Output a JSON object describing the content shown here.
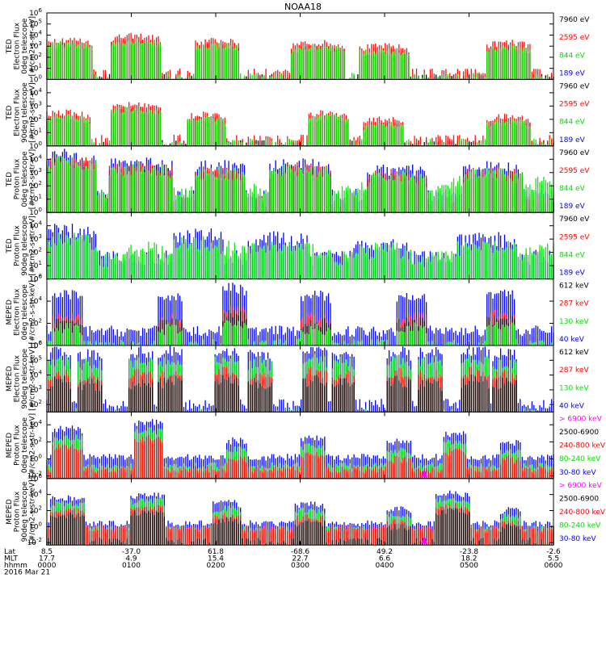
{
  "title": "NOAA18",
  "colors": {
    "blue": "#0000ff",
    "red": "#ff0000",
    "green": "#00e000",
    "black": "#000000",
    "magenta": "#ff00ff"
  },
  "footer": {
    "row_labels": [
      "Lat",
      "MLT",
      "hhmm",
      "2016 Mar 21"
    ],
    "ticks": [
      {
        "lat": "8.5",
        "mlt": "17.7",
        "hhmm": "0000"
      },
      {
        "lat": "-37.0",
        "mlt": "4.9",
        "hhmm": "0100"
      },
      {
        "lat": "61.8",
        "mlt": "15.4",
        "hhmm": "0200"
      },
      {
        "lat": "-68.6",
        "mlt": "22.7",
        "hhmm": "0300"
      },
      {
        "lat": "49.2",
        "mlt": "6.6",
        "hhmm": "0400"
      },
      {
        "lat": "-23.8",
        "mlt": "18.2",
        "hhmm": "0500"
      },
      {
        "lat": "-2.6",
        "mlt": "5.5",
        "hhmm": "0600"
      }
    ]
  },
  "chart_data": [
    {
      "type": "line",
      "ylabel": [
        "TED",
        "Electron Flux",
        "0deg telescope",
        "[#/cm2-s-str-eV]"
      ],
      "yscale": "log",
      "ylim_exp": [
        0,
        6
      ],
      "tick_exps": [
        0,
        1,
        2,
        3,
        4,
        5,
        6
      ],
      "legend": [
        {
          "label": "7960 eV",
          "color": "#000000"
        },
        {
          "label": "2595 eV",
          "color": "#ff0000"
        },
        {
          "label": "844 eV",
          "color": "#00e000"
        },
        {
          "label": "189 eV",
          "color": "#0000ff"
        }
      ],
      "bursts": [
        {
          "x": 0.035,
          "w": 0.11,
          "peak": 3.6
        },
        {
          "x": 0.175,
          "w": 0.1,
          "peak": 3.9
        },
        {
          "x": 0.335,
          "w": 0.09,
          "peak": 3.5
        },
        {
          "x": 0.535,
          "w": 0.11,
          "peak": 3.3
        },
        {
          "x": 0.665,
          "w": 0.1,
          "peak": 3.0
        },
        {
          "x": 0.91,
          "w": 0.09,
          "peak": 3.3
        }
      ],
      "base": 0.7,
      "noise": 0.3,
      "series": [
        {
          "color": "#000000",
          "offset": -0.5,
          "gapfill": true
        },
        {
          "color": "#ff0000",
          "offset": 0.0,
          "gapfill": false
        },
        {
          "color": "#00e000",
          "offset": -0.4,
          "gapfill": false
        }
      ]
    },
    {
      "type": "line",
      "ylabel": [
        "TED",
        "Electron Flux",
        "90deg telescope",
        "[#/cm2-s-str-eV]"
      ],
      "yscale": "log",
      "ylim_exp": [
        0,
        5
      ],
      "tick_exps": [
        0,
        1,
        2,
        3,
        4
      ],
      "legend": [
        {
          "label": "7960 eV",
          "color": "#000000"
        },
        {
          "label": "2595 eV",
          "color": "#ff0000"
        },
        {
          "label": "844 eV",
          "color": "#00e000"
        },
        {
          "label": "189 eV",
          "color": "#0000ff"
        }
      ],
      "bursts": [
        {
          "x": 0.035,
          "w": 0.1,
          "peak": 2.5
        },
        {
          "x": 0.175,
          "w": 0.1,
          "peak": 3.1
        },
        {
          "x": 0.315,
          "w": 0.08,
          "peak": 2.4
        },
        {
          "x": 0.555,
          "w": 0.08,
          "peak": 2.5
        },
        {
          "x": 0.665,
          "w": 0.08,
          "peak": 2.0
        },
        {
          "x": 0.91,
          "w": 0.09,
          "peak": 2.2
        }
      ],
      "base": 0.6,
      "noise": 0.25,
      "series": [
        {
          "color": "#000000",
          "offset": -0.4,
          "gapfill": true
        },
        {
          "color": "#ff0000",
          "offset": 0.0,
          "gapfill": false
        },
        {
          "color": "#00e000",
          "offset": -0.3,
          "gapfill": false
        }
      ]
    },
    {
      "type": "line",
      "ylabel": [
        "TED",
        "Proton Flux",
        "0deg telescope",
        "[#/cm2-s-str-eV]"
      ],
      "yscale": "log",
      "ylim_exp": [
        0,
        5
      ],
      "tick_exps": [
        0,
        1,
        2,
        3,
        4
      ],
      "legend": [
        {
          "label": "7960 eV",
          "color": "#000000"
        },
        {
          "label": "2595 eV",
          "color": "#ff0000"
        },
        {
          "label": "844 eV",
          "color": "#00e000"
        },
        {
          "label": "189 eV",
          "color": "#0000ff"
        }
      ],
      "bursts": [
        {
          "x": 0.035,
          "w": 0.13,
          "peak": 4.3
        },
        {
          "x": 0.185,
          "w": 0.13,
          "peak": 3.8
        },
        {
          "x": 0.34,
          "w": 0.1,
          "peak": 3.5
        },
        {
          "x": 0.5,
          "w": 0.12,
          "peak": 3.7
        },
        {
          "x": 0.69,
          "w": 0.12,
          "peak": 3.2
        },
        {
          "x": 0.88,
          "w": 0.12,
          "peak": 3.4
        }
      ],
      "base": 1.3,
      "noise": 0.5,
      "series": [
        {
          "color": "#0000ff",
          "offset": 0.0,
          "gapfill": true
        },
        {
          "color": "#000000",
          "offset": -0.6,
          "gapfill": false
        },
        {
          "color": "#ff0000",
          "offset": -0.4,
          "gapfill": false
        },
        {
          "color": "#00e000",
          "offset": -0.5,
          "gapfill": true,
          "hump": 2.3
        }
      ]
    },
    {
      "type": "line",
      "ylabel": [
        "TED",
        "Proton Flux",
        "90deg telescope",
        "[#/cm2-s-str-eV]"
      ],
      "yscale": "log",
      "ylim_exp": [
        0,
        5
      ],
      "tick_exps": [
        0,
        1,
        2,
        3,
        4
      ],
      "legend": [
        {
          "label": "7960 eV",
          "color": "#000000"
        },
        {
          "label": "2595 eV",
          "color": "#ff0000"
        },
        {
          "label": "844 eV",
          "color": "#00e000"
        },
        {
          "label": "189 eV",
          "color": "#0000ff"
        }
      ],
      "bursts": [
        {
          "x": 0.035,
          "w": 0.13,
          "peak": 3.6
        },
        {
          "x": 0.3,
          "w": 0.1,
          "peak": 3.3
        },
        {
          "x": 0.455,
          "w": 0.12,
          "peak": 3.0
        },
        {
          "x": 0.66,
          "w": 0.12,
          "peak": 2.7
        },
        {
          "x": 0.87,
          "w": 0.12,
          "peak": 3.0
        }
      ],
      "base": 1.6,
      "noise": 0.6,
      "series": [
        {
          "color": "#0000ff",
          "offset": 0.0,
          "gapfill": true
        },
        {
          "color": "#00e000",
          "offset": -0.6,
          "gapfill": true,
          "hump": 2.3
        }
      ]
    },
    {
      "type": "line",
      "ylabel": [
        "MEPED",
        "Electron Flux",
        "0deg telescope",
        "[#/cm2-s-str-keV]"
      ],
      "yscale": "log",
      "ylim_exp": [
        0,
        6
      ],
      "tick_exps": [
        0,
        2,
        4,
        6
      ],
      "legend": [
        {
          "label": "612 keV",
          "color": "#000000"
        },
        {
          "label": "287 keV",
          "color": "#ff0000"
        },
        {
          "label": "130 keV",
          "color": "#00e000"
        },
        {
          "label": "40 keV",
          "color": "#0000ff"
        }
      ],
      "bursts": [
        {
          "x": 0.04,
          "w": 0.06,
          "peak": 4.6
        },
        {
          "x": 0.245,
          "w": 0.05,
          "peak": 4.5
        },
        {
          "x": 0.37,
          "w": 0.05,
          "peak": 5.2
        },
        {
          "x": 0.53,
          "w": 0.06,
          "peak": 4.5
        },
        {
          "x": 0.72,
          "w": 0.06,
          "peak": 4.6
        },
        {
          "x": 0.895,
          "w": 0.06,
          "peak": 4.8
        }
      ],
      "base": 1.3,
      "noise": 0.5,
      "series": [
        {
          "color": "#0000ff",
          "offset": 0.0,
          "gapfill": true
        },
        {
          "color": "#ff0000",
          "offset": -2.0,
          "gapfill": true
        },
        {
          "color": "#000000",
          "offset": -2.4,
          "gapfill": true
        },
        {
          "color": "#00e000",
          "offset": -3.0,
          "gapfill": true,
          "flat": 0.1
        }
      ]
    },
    {
      "type": "line",
      "ylabel": [
        "MEPED",
        "Electron Flux",
        "90deg telescope",
        "[#/cm2-s-str-keV]"
      ],
      "yscale": "log",
      "ylim_exp": [
        1.5,
        6
      ],
      "tick_exps": [
        2,
        3,
        4,
        5,
        6
      ],
      "legend": [
        {
          "label": "612 keV",
          "color": "#000000"
        },
        {
          "label": "287 keV",
          "color": "#ff0000"
        },
        {
          "label": "130 keV",
          "color": "#00e000"
        },
        {
          "label": "40 keV",
          "color": "#0000ff"
        }
      ],
      "bursts": [
        {
          "x": 0.025,
          "w": 0.05,
          "peak": 5.6
        },
        {
          "x": 0.085,
          "w": 0.05,
          "peak": 5.4
        },
        {
          "x": 0.185,
          "w": 0.05,
          "peak": 5.6
        },
        {
          "x": 0.245,
          "w": 0.05,
          "peak": 5.6
        },
        {
          "x": 0.355,
          "w": 0.05,
          "peak": 5.7
        },
        {
          "x": 0.42,
          "w": 0.05,
          "peak": 5.5
        },
        {
          "x": 0.53,
          "w": 0.05,
          "peak": 5.7
        },
        {
          "x": 0.585,
          "w": 0.05,
          "peak": 5.5
        },
        {
          "x": 0.695,
          "w": 0.05,
          "peak": 5.6
        },
        {
          "x": 0.755,
          "w": 0.05,
          "peak": 5.6
        },
        {
          "x": 0.845,
          "w": 0.06,
          "peak": 5.7
        },
        {
          "x": 0.905,
          "w": 0.05,
          "peak": 5.5
        }
      ],
      "base": 2.0,
      "noise": 0.4,
      "series": [
        {
          "color": "#0000ff",
          "offset": 0.0,
          "gapfill": true
        },
        {
          "color": "#00e000",
          "offset": -0.6,
          "gapfill": true
        },
        {
          "color": "#ff0000",
          "offset": -1.5,
          "gapfill": true
        },
        {
          "color": "#000000",
          "offset": -2.0,
          "gapfill": false
        }
      ]
    },
    {
      "type": "line",
      "ylabel": [
        "MEPED",
        "Proton Flux",
        "0deg telescope",
        "[#/cm2-s-str-keV]"
      ],
      "yscale": "log",
      "ylim_exp": [
        -2.3,
        5.5
      ],
      "tick_exps": [
        -2,
        0,
        2,
        4
      ],
      "legend": [
        {
          "label": "> 6900 keV",
          "color": "#ff00ff"
        },
        {
          "label": "2500-6900",
          "color": "#000000"
        },
        {
          "label": "240-800 keV",
          "color": "#ff0000"
        },
        {
          "label": "80-240 keV",
          "color": "#00e000"
        },
        {
          "label": "30-80 keV",
          "color": "#0000ff"
        }
      ],
      "bursts": [
        {
          "x": 0.04,
          "w": 0.06,
          "peak": 3.6
        },
        {
          "x": 0.2,
          "w": 0.06,
          "peak": 4.4
        },
        {
          "x": 0.375,
          "w": 0.04,
          "peak": 2.2
        },
        {
          "x": 0.525,
          "w": 0.05,
          "peak": 2.6
        },
        {
          "x": 0.695,
          "w": 0.05,
          "peak": 2.0
        },
        {
          "x": 0.805,
          "w": 0.05,
          "peak": 3.0
        },
        {
          "x": 0.915,
          "w": 0.04,
          "peak": 2.0
        }
      ],
      "base": 0.2,
      "noise": 0.4,
      "series": [
        {
          "color": "#0000ff",
          "offset": 0.0,
          "gapfill": true
        },
        {
          "color": "#00e000",
          "offset": -1.0,
          "gapfill": true
        },
        {
          "color": "#ff0000",
          "offset": -2.0,
          "gapfill": false,
          "flat": -1.2
        }
      ],
      "marker": {
        "x": 0.745,
        "color": "#ff00ff"
      }
    },
    {
      "type": "line",
      "ylabel": [
        "MEPED",
        "Proton Flux",
        "90deg telescope",
        "[#/cm2-s-str-keV]"
      ],
      "yscale": "log",
      "ylim_exp": [
        -2.3,
        6
      ],
      "tick_exps": [
        -2,
        0,
        2,
        4,
        6
      ],
      "legend": [
        {
          "label": "> 6900 keV",
          "color": "#ff00ff"
        },
        {
          "label": "2500-6900",
          "color": "#000000"
        },
        {
          "label": "240-800 keV",
          "color": "#ff0000"
        },
        {
          "label": "80-240 keV",
          "color": "#00e000"
        },
        {
          "label": "30-80 keV",
          "color": "#0000ff"
        }
      ],
      "bursts": [
        {
          "x": 0.04,
          "w": 0.07,
          "peak": 3.6
        },
        {
          "x": 0.2,
          "w": 0.07,
          "peak": 4.0
        },
        {
          "x": 0.355,
          "w": 0.06,
          "peak": 3.0
        },
        {
          "x": 0.52,
          "w": 0.06,
          "peak": 2.8
        },
        {
          "x": 0.695,
          "w": 0.05,
          "peak": 2.2
        },
        {
          "x": 0.8,
          "w": 0.07,
          "peak": 4.2
        },
        {
          "x": 0.915,
          "w": 0.04,
          "peak": 2.2
        }
      ],
      "base": 0.4,
      "noise": 0.4,
      "series": [
        {
          "color": "#0000ff",
          "offset": 0.0,
          "gapfill": true
        },
        {
          "color": "#00e000",
          "offset": -0.7,
          "gapfill": true
        },
        {
          "color": "#ff0000",
          "offset": -1.6,
          "gapfill": false,
          "flat": -0.2
        },
        {
          "color": "#000000",
          "offset": -2.2,
          "gapfill": false
        }
      ],
      "marker": {
        "x": 0.745,
        "color": "#ff00ff"
      }
    }
  ]
}
